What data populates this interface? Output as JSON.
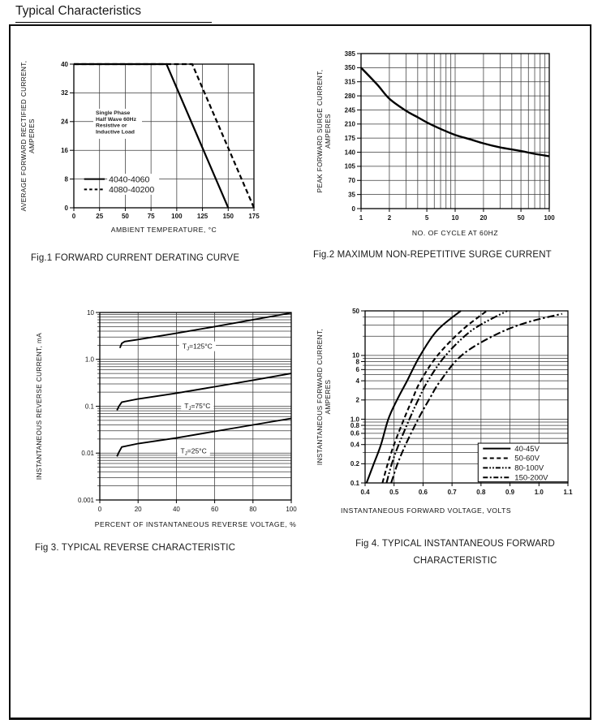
{
  "page": {
    "title": "Typical Characteristics"
  },
  "figures": [
    {
      "caption": "Fig.1 FORWARD CURRENT DERATING CURVE"
    },
    {
      "caption": "Fig.2 MAXIMUM NON-REPETITIVE SURGE CURRENT"
    },
    {
      "caption": "Fig 3. TYPICAL REVERSE CHARACTERISTIC"
    },
    {
      "caption_line1": "Fig 4. TYPICAL INSTANTANEOUS FORWARD",
      "caption_line2": "CHARACTERISTIC"
    }
  ],
  "chart_data": [
    {
      "id": "fig1",
      "type": "line",
      "title": "Fig.1 FORWARD CURRENT DERATING CURVE",
      "xlabel": "AMBIENT TEMPERATURE, °C",
      "ylabel_lines": [
        "AVERAGE FORWARD RECTIFIED CURRENT,",
        "AMPERES"
      ],
      "x": {
        "scale": "linear",
        "min": 0,
        "max": 175,
        "ticks": [
          0,
          25,
          50,
          75,
          100,
          125,
          150,
          175
        ],
        "labels": [
          "0",
          "25",
          "50",
          "75",
          "100",
          "125",
          "150",
          "175"
        ]
      },
      "y": {
        "scale": "linear",
        "min": 0,
        "max": 40,
        "ticks": [
          0,
          8,
          16,
          24,
          32,
          40
        ],
        "labels": [
          "0",
          "8",
          "16",
          "24",
          "32",
          "40"
        ]
      },
      "grid": true,
      "legend_position": "inside-bottom-left",
      "annotation_lines": [
        "Single Phase",
        "Half Wave 60Hz",
        "Resistive or",
        "Inductive Load"
      ],
      "legend": {
        "style": "plain"
      },
      "series": [
        {
          "name": "4040-4060",
          "style": "solid",
          "points": [
            [
              0,
              40
            ],
            [
              90,
              40
            ],
            [
              150,
              0
            ]
          ]
        },
        {
          "name": "4080-40200",
          "style": "dashed",
          "points": [
            [
              0,
              40
            ],
            [
              115,
              40
            ],
            [
              175,
              0
            ]
          ]
        }
      ]
    },
    {
      "id": "fig2",
      "type": "line",
      "title": "Fig.2 MAXIMUM NON-REPETITIVE SURGE CURRENT",
      "xlabel": "NO. OF CYCLE AT 60HZ",
      "ylabel_lines": [
        "PEAK FORWARD SURGE CURRENT,",
        "AMPERES"
      ],
      "x": {
        "scale": "log",
        "min": 1,
        "max": 100,
        "ticks": [
          1,
          2,
          5,
          10,
          20,
          50,
          100
        ],
        "labels": [
          "1",
          "2",
          "5",
          "10",
          "20",
          "50",
          "100"
        ]
      },
      "y": {
        "scale": "linear",
        "min": 0,
        "max": 385,
        "ticks": [
          0,
          35,
          70,
          105,
          140,
          175,
          210,
          245,
          280,
          315,
          350,
          385
        ],
        "labels": [
          "0",
          "35",
          "70",
          "105",
          "140",
          "175",
          "210",
          "245",
          "280",
          "315",
          "350",
          "385"
        ]
      },
      "grid": true,
      "series": [
        {
          "name": "surge-current",
          "style": "solid",
          "points": [
            [
              1,
              350
            ],
            [
              1.5,
              307
            ],
            [
              2,
              273
            ],
            [
              3,
              243
            ],
            [
              4,
              227
            ],
            [
              5,
              214
            ],
            [
              7,
              198
            ],
            [
              10,
              183
            ],
            [
              15,
              171
            ],
            [
              20,
              162
            ],
            [
              30,
              152
            ],
            [
              50,
              143
            ],
            [
              70,
              136
            ],
            [
              100,
              130
            ]
          ]
        }
      ]
    },
    {
      "id": "fig3",
      "type": "line",
      "title": "Fig 3. TYPICAL REVERSE CHARACTERISTIC",
      "xlabel": "PERCENT OF INSTANTANEOUS REVERSE VOLTAGE, %",
      "ylabel_lines": [
        "INSTANTANEOUS  REVERSE  CURRENT, mA"
      ],
      "x": {
        "scale": "linear",
        "min": 0,
        "max": 100,
        "ticks": [
          0,
          20,
          40,
          60,
          80,
          100
        ],
        "labels": [
          "0",
          "20",
          "40",
          "60",
          "80",
          "100"
        ]
      },
      "y": {
        "scale": "log",
        "min": 0.001,
        "max": 10,
        "ticks": [
          10,
          1,
          0.1,
          0.01,
          0.001
        ],
        "labels": [
          "10",
          "1.0",
          "0.1",
          "0.01",
          "0.001"
        ]
      },
      "grid": true,
      "series": [
        {
          "name": "TJ=125C",
          "style": "solid",
          "label": {
            "pre": "T",
            "sub": "J",
            "post": "=125°C",
            "at": [
              51,
              1.9
            ]
          },
          "points": [
            [
              10.5,
              1.75
            ],
            [
              11.5,
              2.2
            ],
            [
              13,
              2.4
            ],
            [
              20,
              2.65
            ],
            [
              40,
              3.6
            ],
            [
              60,
              5.0
            ],
            [
              80,
              7.0
            ],
            [
              100,
              9.8
            ]
          ]
        },
        {
          "name": "TJ=75C",
          "style": "solid",
          "label": {
            "pre": "T",
            "sub": "J",
            "post": "=75°C",
            "at": [
              51,
              0.103
            ]
          },
          "points": [
            [
              9,
              0.082
            ],
            [
              10,
              0.1
            ],
            [
              11.5,
              0.122
            ],
            [
              20,
              0.143
            ],
            [
              40,
              0.19
            ],
            [
              60,
              0.26
            ],
            [
              80,
              0.36
            ],
            [
              100,
              0.5
            ]
          ]
        },
        {
          "name": "TJ=25C",
          "style": "solid",
          "label": {
            "pre": "T",
            "sub": "J",
            "post": "=25°C",
            "at": [
              49,
              0.0112
            ]
          },
          "points": [
            [
              9,
              0.0085
            ],
            [
              10,
              0.0105
            ],
            [
              11.5,
              0.0135
            ],
            [
              20,
              0.016
            ],
            [
              40,
              0.021
            ],
            [
              60,
              0.029
            ],
            [
              80,
              0.04
            ],
            [
              100,
              0.055
            ]
          ]
        }
      ]
    },
    {
      "id": "fig4",
      "type": "line",
      "title": "Fig 4. TYPICAL INSTANTANEOUS FORWARD CHARACTERISTIC",
      "xlabel": "INSTANTANEOUS FORWARD VOLTAGE, VOLTS",
      "ylabel_lines": [
        "INSTANTANEOUS FORWARD CURRENT,",
        "AMPERES"
      ],
      "x": {
        "scale": "linear",
        "min": 0.4,
        "max": 1.1,
        "ticks": [
          0.4,
          0.5,
          0.6,
          0.7,
          0.8,
          0.9,
          1.0,
          1.1
        ],
        "labels": [
          "0.4",
          "0.5",
          "0.6",
          "0.7",
          "0.8",
          "0.9",
          "1.0",
          "1.1"
        ]
      },
      "y": {
        "scale": "log",
        "min": 0.1,
        "max": 50,
        "ticks": [
          50,
          10,
          8,
          6,
          4,
          2,
          1,
          0.8,
          0.6,
          0.4,
          0.2,
          0.1
        ],
        "labels": [
          "50",
          "10",
          "8",
          "6",
          "4",
          "2",
          "1.0",
          "0.8",
          "0.6",
          "0.4",
          "0.2",
          "0.1"
        ]
      },
      "grid": true,
      "legend_position": "inside-bottom-right",
      "legend": {
        "style": "boxed"
      },
      "series": [
        {
          "name": "40-45V",
          "style": "solid",
          "points": [
            [
              0.405,
              0.1
            ],
            [
              0.43,
              0.2
            ],
            [
              0.455,
              0.4
            ],
            [
              0.48,
              1
            ],
            [
              0.51,
              2
            ],
            [
              0.545,
              4
            ],
            [
              0.59,
              10
            ],
            [
              0.65,
              25
            ],
            [
              0.73,
              50
            ]
          ]
        },
        {
          "name": "50-60V",
          "style": "dashed",
          "points": [
            [
              0.46,
              0.1
            ],
            [
              0.478,
              0.2
            ],
            [
              0.5,
              0.4
            ],
            [
              0.534,
              1
            ],
            [
              0.562,
              2
            ],
            [
              0.592,
              4
            ],
            [
              0.65,
              10
            ],
            [
              0.735,
              25
            ],
            [
              0.82,
              50
            ]
          ]
        },
        {
          "name": "80-100V",
          "style": "dash-dot-dot",
          "points": [
            [
              0.474,
              0.1
            ],
            [
              0.492,
              0.2
            ],
            [
              0.516,
              0.4
            ],
            [
              0.553,
              1
            ],
            [
              0.583,
              2
            ],
            [
              0.617,
              4
            ],
            [
              0.678,
              10
            ],
            [
              0.77,
              25
            ],
            [
              0.89,
              50
            ]
          ]
        },
        {
          "name": "150-200V",
          "style": "dash-dot",
          "points": [
            [
              0.49,
              0.1
            ],
            [
              0.512,
              0.2
            ],
            [
              0.54,
              0.4
            ],
            [
              0.583,
              1
            ],
            [
              0.62,
              2
            ],
            [
              0.66,
              4
            ],
            [
              0.733,
              10
            ],
            [
              0.84,
              20
            ],
            [
              0.95,
              32
            ],
            [
              1.08,
              45
            ]
          ]
        }
      ]
    }
  ],
  "colors": {
    "ink": "#141414",
    "grid": "#3b3b3b",
    "background": "#ffffff"
  }
}
